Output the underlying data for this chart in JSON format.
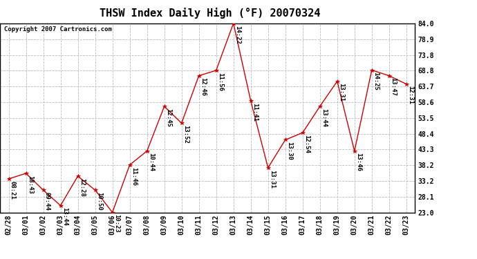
{
  "title": "THSW Index Daily High (°F) 20070324",
  "copyright": "Copyright 2007 Cartronics.com",
  "dates": [
    "02/28",
    "03/01",
    "03/02",
    "03/03",
    "03/04",
    "03/05",
    "03/06",
    "03/07",
    "03/08",
    "03/09",
    "03/10",
    "03/11",
    "03/12",
    "03/13",
    "03/14",
    "03/15",
    "03/16",
    "03/17",
    "03/18",
    "03/19",
    "03/20",
    "03/21",
    "03/22",
    "03/23"
  ],
  "values": [
    33.8,
    35.6,
    30.2,
    25.2,
    34.7,
    30.2,
    23.0,
    38.3,
    42.8,
    57.2,
    51.8,
    67.1,
    68.8,
    84.0,
    59.0,
    37.4,
    46.4,
    48.7,
    57.2,
    65.3,
    42.8,
    68.9,
    67.1,
    64.4
  ],
  "time_labels": [
    "08:21",
    "18:43",
    "09:44",
    "13:44",
    "12:28",
    "10:50",
    "10:23",
    "11:46",
    "10:44",
    "12:45",
    "13:52",
    "12:46",
    "11:56",
    "14:22",
    "11:41",
    "13:31",
    "13:30",
    "12:54",
    "13:44",
    "13:31",
    "13:46",
    "14:25",
    "13:47",
    "12:31"
  ],
  "ylim": [
    23.0,
    84.0
  ],
  "yticks": [
    23.0,
    28.1,
    33.2,
    38.2,
    43.3,
    48.4,
    53.5,
    58.6,
    63.7,
    68.8,
    73.8,
    78.9,
    84.0
  ],
  "line_color": "#cc0000",
  "marker_color": "#cc0000",
  "bg_color": "#ffffff",
  "grid_color": "#bbbbbb",
  "title_fontsize": 11,
  "label_fontsize": 6.5,
  "tick_fontsize": 7,
  "copyright_fontsize": 6.5
}
